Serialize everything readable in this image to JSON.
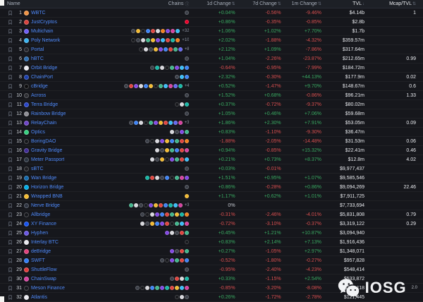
{
  "header": {
    "name_label": "Name",
    "chains_label": "Chains",
    "columns": [
      "1d Change",
      "7d Change",
      "1m Change",
      "TVL",
      "Mcap/TVL"
    ]
  },
  "watermark": {
    "brand": "IOSG",
    "suffix": "2.0",
    "icon": "wechat-icon"
  },
  "colors": {
    "positive": "#39a961",
    "negative": "#d94f4f",
    "link": "#4f8afa"
  },
  "table": {
    "rows": [
      {
        "rank": 1,
        "name": "WBTC",
        "icon": "#f09242",
        "chains": [
          "#3c4049"
        ],
        "more": "",
        "d1": "+0.04%",
        "d7": "-0.56%",
        "m1": "-9.46%",
        "tvl": "$4.14b",
        "mcap": "1"
      },
      {
        "rank": 2,
        "name": "JustCryptos",
        "icon": "#d8413c",
        "chains": [
          "#eb0029"
        ],
        "more": "",
        "d1": "+0.86%",
        "d7": "-0.35%",
        "m1": "-0.85%",
        "tvl": "$2.8b",
        "mcap": ""
      },
      {
        "rank": 3,
        "name": "Multichain",
        "icon": "#6d5df6",
        "chains": [
          "#3c4049",
          "#f3ba2f",
          "#17181c",
          "#3b82f6",
          "#e0433d",
          "#d8d8dd",
          "#f2801c",
          "#8247e5",
          "#d6409f",
          "#38bdf8"
        ],
        "more": "+32",
        "d1": "+1.06%",
        "d7": "+1.02%",
        "m1": "+7.70%",
        "tvl": "$1.7b",
        "mcap": ""
      },
      {
        "rank": 4,
        "name": "Poly Network",
        "icon": "#38b2f0",
        "chains": [
          "#17181c",
          "#3c4049",
          "#d8d8dd",
          "#3fb68b",
          "#f3ba2f",
          "#8247e5",
          "#38bdf8",
          "#e0433d",
          "#14b8a6",
          "#f2801c"
        ],
        "more": "+10",
        "d1": "+2.02%",
        "d7": "-1.88%",
        "m1": "-4.32%",
        "tvl": "$359.57m",
        "mcap": ""
      },
      {
        "rank": 5,
        "name": "Portal",
        "icon": "#23242b",
        "chains": [
          "#17181c",
          "#d8d8dd",
          "#3c4049",
          "#f3ba2f",
          "#8247e5",
          "#3b82f6",
          "#e0433d",
          "#3fb68b",
          "#6366f1"
        ],
        "more": "+8",
        "d1": "+2.12%",
        "d7": "+1.09%",
        "m1": "-7.86%",
        "tvl": "$317.64m",
        "mcap": ""
      },
      {
        "rank": 6,
        "name": "hBTC",
        "icon": "#2b6db0",
        "chains": [
          "#3c4049"
        ],
        "more": "",
        "d1": "+1.04%",
        "d7": "-2.26%",
        "m1": "-23.87%",
        "tvl": "$212.65m",
        "mcap": "0.99"
      },
      {
        "rank": 7,
        "name": "Orbit Bridge",
        "icon": "#e9e9ef",
        "chains": [
          "#3c4049",
          "#14b8a6",
          "#d8d8dd",
          "#17181c",
          "#3fb68b",
          "#8247e5",
          "#38bdf8",
          "#3b82f6"
        ],
        "more": "",
        "d1": "-0.64%",
        "d7": "-0.95%",
        "m1": "-7.99%",
        "tvl": "$184.72m",
        "mcap": ""
      },
      {
        "rank": 8,
        "name": "ChainPort",
        "icon": "#1b3fae",
        "chains": [
          "#3c4049",
          "#38bdf8",
          "#3b82f6"
        ],
        "more": "",
        "d1": "+2.32%",
        "d7": "-0.30%",
        "m1": "+44.13%",
        "tvl": "$177.9m",
        "mcap": "0.02"
      },
      {
        "rank": 9,
        "name": "cBridge",
        "icon": "#0d0d0f",
        "chains": [
          "#3c4049",
          "#e0433d",
          "#8247e5",
          "#d8d8dd",
          "#3b82f6",
          "#f3ba2f",
          "#17181c",
          "#3fb68b",
          "#38bdf8",
          "#d6409f",
          "#6366f1",
          "#14b8a6"
        ],
        "more": "+4",
        "d1": "+0.52%",
        "d7": "-1.47%",
        "m1": "+9.70%",
        "tvl": "$148.67m",
        "mcap": "0.6"
      },
      {
        "rank": 10,
        "name": "Across",
        "icon": "#2d2e33",
        "chains": [
          "#3c4049"
        ],
        "more": "",
        "d1": "+1.52%",
        "d7": "+0.68%",
        "m1": "-0.86%",
        "tvl": "$96.21m",
        "mcap": "1.33"
      },
      {
        "rank": 11,
        "name": "Terra Bridge",
        "icon": "#2845c9",
        "chains": [
          "#17181c",
          "#d8d8dd",
          "#14b8a6"
        ],
        "more": "",
        "d1": "+0.37%",
        "d7": "-0.72%",
        "m1": "-9.37%",
        "tvl": "$80.02m",
        "mcap": ""
      },
      {
        "rank": 12,
        "name": "Rainbow Bridge",
        "icon": "#8e8e95",
        "chains": [
          "#3c4049"
        ],
        "more": "",
        "d1": "+1.05%",
        "d7": "+0.46%",
        "m1": "+7.06%",
        "tvl": "$59.68m",
        "mcap": ""
      },
      {
        "rank": 13,
        "name": "RelayChain",
        "icon": "#6e44c9",
        "chains": [
          "#3c4049",
          "#3b82f6",
          "#d8d8dd",
          "#17181c",
          "#3fb68b",
          "#8247e5",
          "#f3ba2f",
          "#e0433d",
          "#38bdf8",
          "#6366f1",
          "#d6409f"
        ],
        "more": "+3",
        "d1": "+1.86%",
        "d7": "+2.30%",
        "m1": "+7.91%",
        "tvl": "$53.05m",
        "mcap": "0.09"
      },
      {
        "rank": 14,
        "name": "Optics",
        "icon": "#35d07f",
        "chains": [
          "#d8d8dd",
          "#3c4049",
          "#8247e5",
          "#3fb68b"
        ],
        "more": "",
        "d1": "+0.83%",
        "d7": "-1.10%",
        "m1": "-9.30%",
        "tvl": "$36.47m",
        "mcap": ""
      },
      {
        "rank": 15,
        "name": "BoringDAO",
        "icon": "#15161a",
        "chains": [
          "#3c4049",
          "#17181c",
          "#d8d8dd",
          "#8247e5",
          "#f3ba2f",
          "#3b82f6",
          "#3fb68b",
          "#e0433d",
          "#f2801c"
        ],
        "more": "",
        "d1": "-1.88%",
        "d7": "-2.05%",
        "m1": "-14.48%",
        "tvl": "$31.53m",
        "mcap": "0.06"
      },
      {
        "rank": 16,
        "name": "Gravity Bridge",
        "icon": "#3f2b96",
        "chains": [
          "#d8d8dd",
          "#3c4049",
          "#f3ba2f",
          "#3fb68b",
          "#3b82f6",
          "#e0433d",
          "#d6409f"
        ],
        "more": "",
        "d1": "+0.94%",
        "d7": "-0.85%",
        "m1": "+15.32%",
        "tvl": "$22.41m",
        "mcap": "0.46"
      },
      {
        "rank": 17,
        "name": "Meter Passport",
        "icon": "#2a3340",
        "chains": [
          "#d8d8dd",
          "#3c4049",
          "#f3ba2f",
          "#17181c",
          "#8247e5",
          "#3fb68b",
          "#e0433d",
          "#38bdf8"
        ],
        "more": "",
        "d1": "+0.21%",
        "d7": "+0.73%",
        "m1": "+8.37%",
        "tvl": "$12.8m",
        "mcap": "4.02"
      },
      {
        "rank": 18,
        "name": "sBTC",
        "icon": "#1e1e22",
        "chains": [
          "#3c4049"
        ],
        "more": "",
        "d1": "+0.03%",
        "d7": "-0.01%",
        "m1": "",
        "tvl": "$9,977,437",
        "mcap": ""
      },
      {
        "rank": 19,
        "name": "Wan Bridge",
        "icon": "#136aad",
        "chains": [
          "#14b8a6",
          "#e0433d",
          "#d8d8dd",
          "#3c4049",
          "#3b82f6",
          "#17181c",
          "#3fb68b",
          "#d6409f",
          "#8247e5"
        ],
        "more": "",
        "d1": "+1.51%",
        "d7": "+0.95%",
        "m1": "+1.07%",
        "tvl": "$9,585,546",
        "mcap": ""
      },
      {
        "rank": 20,
        "name": "Horizon Bridge",
        "icon": "#00aee9",
        "chains": [
          "#3c4049"
        ],
        "more": "",
        "d1": "+0.86%",
        "d7": "-0.28%",
        "m1": "+0.86%",
        "tvl": "$9,094,269",
        "mcap": "22.46"
      },
      {
        "rank": 21,
        "name": "Wrapped BNB",
        "icon": "#f3ba2f",
        "chains": [
          "#f3ba2f"
        ],
        "more": "",
        "d1": "+1.17%",
        "d7": "+0.62%",
        "m1": "+1.01%",
        "tvl": "$7,911,725",
        "mcap": ""
      },
      {
        "rank": 22,
        "name": "Nerve Bridge",
        "icon": "#2d3340",
        "chains": [
          "#3fb68b",
          "#d8d8dd",
          "#3c4049",
          "#17181c",
          "#8247e5",
          "#f3ba2f",
          "#e0433d",
          "#3b82f6",
          "#14b8a6",
          "#38bdf8",
          "#d6409f"
        ],
        "more": "+3",
        "d1": "0%",
        "d7": "",
        "m1": "",
        "tvl": "$7,733,694",
        "mcap": ""
      },
      {
        "rank": 23,
        "name": "Allbridge",
        "icon": "#14161b",
        "chains": [
          "#3c4049",
          "#17181c",
          "#d8d8dd",
          "#8247e5",
          "#3b82f6",
          "#e0433d",
          "#3fb68b",
          "#f3ba2f",
          "#14b8a6",
          "#f2801c"
        ],
        "more": "",
        "d1": "-0.31%",
        "d7": "-2.46%",
        "m1": "-4.01%",
        "tvl": "$5,831,808",
        "mcap": "0.79"
      },
      {
        "rank": 24,
        "name": "XY Finance",
        "icon": "#1452f0",
        "chains": [
          "#d8d8dd",
          "#3c4049",
          "#f3ba2f",
          "#3b82f6",
          "#8247e5",
          "#e0433d",
          "#17181c",
          "#3fb68b",
          "#38bdf8",
          "#d6409f"
        ],
        "more": "",
        "d1": "-0.72%",
        "d7": "-3.10%",
        "m1": "-0.37%",
        "tvl": "$3,319,122",
        "mcap": "0.29"
      },
      {
        "rank": 25,
        "name": "Hyphen",
        "icon": "#6956e5",
        "chains": [
          "#8247e5",
          "#d8d8dd",
          "#3c4049",
          "#e0433d",
          "#3fb68b"
        ],
        "more": "",
        "d1": "+0.45%",
        "d7": "+1.21%",
        "m1": "+10.87%",
        "tvl": "$3,094,940",
        "mcap": ""
      },
      {
        "rank": 26,
        "name": "Interlay BTC",
        "icon": "#e8e8ee",
        "chains": [
          "#17181c"
        ],
        "more": "",
        "d1": "+0.83%",
        "d7": "+2.14%",
        "m1": "+7.13%",
        "tvl": "$1,916,436",
        "mcap": ""
      },
      {
        "rank": 27,
        "name": "deBridge",
        "icon": "#e0407b",
        "chains": [
          "#8247e5",
          "#3c4049",
          "#e0433d",
          "#3fb68b"
        ],
        "more": "",
        "d1": "+0.27%",
        "d7": "-1.05%",
        "m1": "+2.97%",
        "tvl": "$1,348,071",
        "mcap": ""
      },
      {
        "rank": 28,
        "name": "SWFT",
        "icon": "#2f7cf6",
        "chains": [
          "#3c4049",
          "#17181c",
          "#8247e5",
          "#3fb68b",
          "#e0433d",
          "#3b82f6"
        ],
        "more": "",
        "d1": "-0.52%",
        "d7": "-1.80%",
        "m1": "-0.27%",
        "tvl": "$957,828",
        "mcap": ""
      },
      {
        "rank": 29,
        "name": "ShuttleFlow",
        "icon": "#e23b3b",
        "chains": [
          "#3c4049"
        ],
        "more": "",
        "d1": "-0.95%",
        "d7": "-2.40%",
        "m1": "-4.23%",
        "tvl": "$548,414",
        "mcap": ""
      },
      {
        "rank": 30,
        "name": "ChainSwap",
        "icon": "#d6409f",
        "chains": [
          "#3c4049",
          "#e0433d",
          "#d8d8dd",
          "#14b8a6"
        ],
        "more": "",
        "d1": "+0.33%",
        "d7": "-1.15%",
        "m1": "+2.54%",
        "tvl": "$533,872",
        "mcap": ""
      },
      {
        "rank": 31,
        "name": "Meson Finance",
        "icon": "#14161b",
        "chains": [
          "#3c4049",
          "#17181c",
          "#d8d8dd",
          "#3b82f6",
          "#3fb68b",
          "#8247e5",
          "#14b8a6",
          "#e0433d",
          "#f3ba2f",
          "#38bdf8",
          "#d6409f"
        ],
        "more": "",
        "d1": "-0.85%",
        "d7": "-3.20%",
        "m1": "-8.08%",
        "tvl": "$304,118",
        "mcap": ""
      },
      {
        "rank": 32,
        "name": "Atlantis",
        "icon": "#e9e9ef",
        "chains": [
          "#17181c",
          "#d8d8dd",
          "#3c4049"
        ],
        "more": "",
        "d1": "+0.26%",
        "d7": "-1.72%",
        "m1": "-2.78%",
        "tvl": "$121,445",
        "mcap": ""
      }
    ]
  }
}
